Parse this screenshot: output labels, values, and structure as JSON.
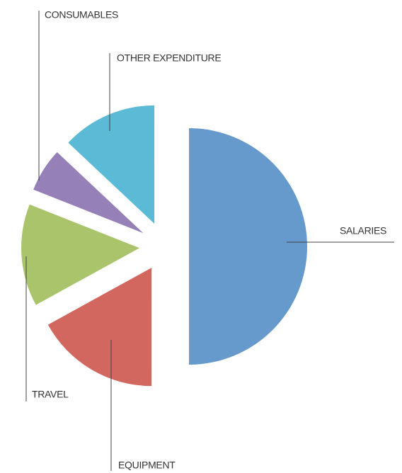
{
  "chart_data": {
    "type": "pie",
    "categories": [
      "SALARIES",
      "EQUIPMENT",
      "TRAVEL",
      "CONSUMABLES",
      "OTHER EXPENDITURE"
    ],
    "values": [
      50,
      17,
      14,
      6,
      13
    ],
    "colors": [
      "#6699cc",
      "#d1675f",
      "#a9c46a",
      "#9580b8",
      "#5bbad5"
    ]
  }
}
